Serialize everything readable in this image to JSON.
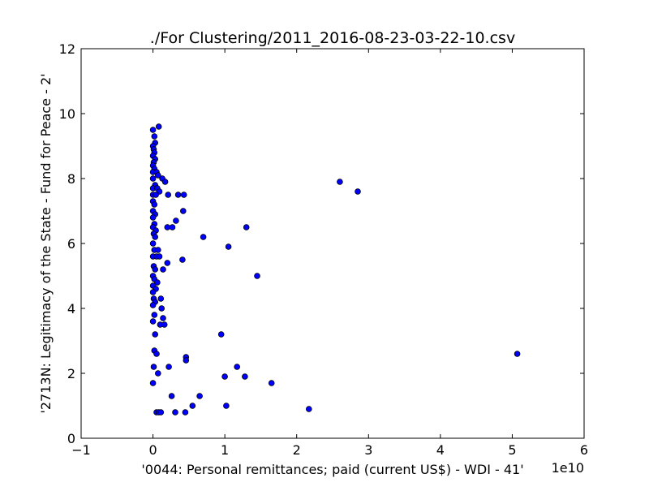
{
  "chart_data": {
    "type": "scatter",
    "title": "./For Clustering/2011_2016-08-23-03-22-10.csv",
    "xlabel": "'0044: Personal remittances; paid  (current US$) - WDI - 41'",
    "ylabel": "'2713N: Legitimacy of the State - Fund for Peace - 2'",
    "x_offset_label": "1e10",
    "xlim": [
      -1,
      6
    ],
    "ylim": [
      0,
      12
    ],
    "x_ticks": [
      -1,
      0,
      1,
      2,
      3,
      4,
      5,
      6
    ],
    "x_tick_labels": [
      "−1",
      "0",
      "1",
      "2",
      "3",
      "4",
      "5",
      "6"
    ],
    "y_ticks": [
      0,
      2,
      4,
      6,
      8,
      10,
      12
    ],
    "y_tick_labels": [
      "0",
      "2",
      "4",
      "6",
      "8",
      "10",
      "12"
    ],
    "grid": false,
    "marker_color": "#0000ff",
    "marker_edge": "#000000",
    "points": [
      [
        0.0,
        9.5
      ],
      [
        0.02,
        9.3
      ],
      [
        0.03,
        9.1
      ],
      [
        0.08,
        9.6
      ],
      [
        0.0,
        9.0
      ],
      [
        0.01,
        8.9
      ],
      [
        0.02,
        8.8
      ],
      [
        0.0,
        8.7
      ],
      [
        0.03,
        8.6
      ],
      [
        0.01,
        8.5
      ],
      [
        0.0,
        8.4
      ],
      [
        0.02,
        8.3
      ],
      [
        0.0,
        8.2
      ],
      [
        0.05,
        8.2
      ],
      [
        0.07,
        8.1
      ],
      [
        0.13,
        8.0
      ],
      [
        0.17,
        7.9
      ],
      [
        0.0,
        8.0
      ],
      [
        0.03,
        7.8
      ],
      [
        0.0,
        7.7
      ],
      [
        0.06,
        7.7
      ],
      [
        0.09,
        7.6
      ],
      [
        0.0,
        7.5
      ],
      [
        0.04,
        7.5
      ],
      [
        0.0,
        7.3
      ],
      [
        0.02,
        7.2
      ],
      [
        0.0,
        7.0
      ],
      [
        0.03,
        6.9
      ],
      [
        0.0,
        6.8
      ],
      [
        0.02,
        6.6
      ],
      [
        0.0,
        6.5
      ],
      [
        0.04,
        6.4
      ],
      [
        0.01,
        6.3
      ],
      [
        0.03,
        6.2
      ],
      [
        0.0,
        6.0
      ],
      [
        0.02,
        5.8
      ],
      [
        0.0,
        5.6
      ],
      [
        0.05,
        5.6
      ],
      [
        0.07,
        5.8
      ],
      [
        0.09,
        5.6
      ],
      [
        0.01,
        5.3
      ],
      [
        0.03,
        5.2
      ],
      [
        0.0,
        5.0
      ],
      [
        0.02,
        4.9
      ],
      [
        0.06,
        4.8
      ],
      [
        0.0,
        4.7
      ],
      [
        0.04,
        4.6
      ],
      [
        0.0,
        4.5
      ],
      [
        0.01,
        4.3
      ],
      [
        0.03,
        4.2
      ],
      [
        0.0,
        4.1
      ],
      [
        0.11,
        4.3
      ],
      [
        0.12,
        4.0
      ],
      [
        0.02,
        3.8
      ],
      [
        0.0,
        3.6
      ],
      [
        0.14,
        3.7
      ],
      [
        0.1,
        3.5
      ],
      [
        0.16,
        3.5
      ],
      [
        0.03,
        3.2
      ],
      [
        0.02,
        2.7
      ],
      [
        0.05,
        2.6
      ],
      [
        0.01,
        2.2
      ],
      [
        0.07,
        2.0
      ],
      [
        0.0,
        1.7
      ],
      [
        0.05,
        0.8
      ],
      [
        0.08,
        0.8
      ],
      [
        0.11,
        0.8
      ],
      [
        0.21,
        7.5
      ],
      [
        0.35,
        7.5
      ],
      [
        0.43,
        7.5
      ],
      [
        0.42,
        7.0
      ],
      [
        0.32,
        6.7
      ],
      [
        0.2,
        6.5
      ],
      [
        0.27,
        6.5
      ],
      [
        0.7,
        6.2
      ],
      [
        1.05,
        5.9
      ],
      [
        1.3,
        6.5
      ],
      [
        0.41,
        5.5
      ],
      [
        0.2,
        5.4
      ],
      [
        0.14,
        5.2
      ],
      [
        1.45,
        5.0
      ],
      [
        0.46,
        2.5
      ],
      [
        0.46,
        2.4
      ],
      [
        0.22,
        2.2
      ],
      [
        0.95,
        3.2
      ],
      [
        1.17,
        2.2
      ],
      [
        1.0,
        1.9
      ],
      [
        1.28,
        1.9
      ],
      [
        1.65,
        1.7
      ],
      [
        0.26,
        1.3
      ],
      [
        0.65,
        1.3
      ],
      [
        0.55,
        1.0
      ],
      [
        1.02,
        1.0
      ],
      [
        0.31,
        0.8
      ],
      [
        0.45,
        0.8
      ],
      [
        2.17,
        0.9
      ],
      [
        2.6,
        7.9
      ],
      [
        2.85,
        7.6
      ],
      [
        5.07,
        2.6
      ]
    ]
  }
}
